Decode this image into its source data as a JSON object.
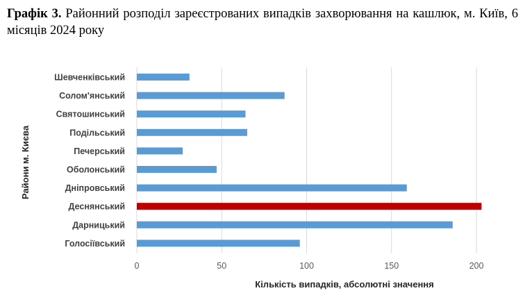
{
  "caption": {
    "label": "Графік 3.",
    "text": "Районний розподіл зареєстрованих випадків захворювання на кашлюк, м. Київ, 6 місяців 2024 року"
  },
  "chart_data": {
    "type": "bar",
    "orientation": "horizontal",
    "categories": [
      "Шевченківський",
      "Солом'янський",
      "Святошинський",
      "Подільський",
      "Печерський",
      "Оболонський",
      "Дніпровський",
      "Деснянський",
      "Дарницький",
      "Голосіївський"
    ],
    "values": [
      31,
      87,
      64,
      65,
      27,
      47,
      159,
      203,
      186,
      96
    ],
    "highlight_category": "Деснянський",
    "colors": {
      "bar": "#5b9bd5",
      "highlight": "#c00000",
      "grid": "#d9d9d9"
    },
    "xlabel": "Кількість випадків, абсолютні значення",
    "ylabel": "Райони м. Києва",
    "xlim": [
      0,
      200
    ],
    "xticks": [
      0,
      50,
      100,
      150,
      200
    ],
    "grid": "vertical"
  }
}
